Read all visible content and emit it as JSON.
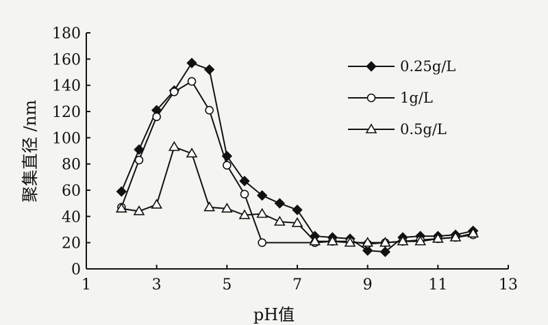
{
  "chart_data": {
    "type": "line",
    "xlabel": "pH值",
    "ylabel": "聚集直径 /nm",
    "xlim": [
      1,
      13
    ],
    "ylim": [
      0,
      180
    ],
    "xticks": [
      "1",
      "3",
      "5",
      "7",
      "9",
      "11",
      "13"
    ],
    "yticks": [
      "0",
      "20",
      "40",
      "60",
      "80",
      "100",
      "120",
      "140",
      "160",
      "180"
    ],
    "legend_position": "top-right",
    "series": [
      {
        "name": "0.25g/L",
        "marker": "filled-diamond",
        "x": [
          2,
          2.5,
          3,
          3.5,
          4,
          4.5,
          5,
          5.5,
          6,
          6.5,
          7,
          7.5,
          8,
          8.5,
          9,
          9.5,
          10,
          10.5,
          11,
          11.5,
          12
        ],
        "y": [
          59,
          91,
          121,
          136,
          157,
          152,
          86,
          67,
          56,
          50,
          45,
          25,
          24,
          23,
          14,
          13,
          24,
          25,
          25,
          26,
          29
        ]
      },
      {
        "name": "1g/L",
        "marker": "open-circle",
        "x": [
          2,
          2.5,
          3,
          3.5,
          4,
          4.5,
          5,
          5.5,
          6,
          7.5,
          8,
          8.5,
          9,
          9.5,
          10,
          10.5,
          11,
          11.5,
          12
        ],
        "y": [
          47,
          83,
          116,
          135,
          143,
          121,
          79,
          57,
          20,
          20,
          21,
          21,
          19,
          20,
          21,
          22,
          23,
          24,
          26
        ]
      },
      {
        "name": "0.5g/L",
        "marker": "open-triangle",
        "x": [
          2,
          2.5,
          3,
          3.5,
          4,
          4.5,
          5,
          5.5,
          6,
          6.5,
          7,
          7.5,
          8,
          8.5,
          9,
          9.5,
          10,
          10.5,
          11,
          11.5,
          12
        ],
        "y": [
          46,
          44,
          49,
          93,
          88,
          47,
          46,
          41,
          42,
          36,
          35,
          21,
          21,
          20,
          20,
          20,
          21,
          21,
          23,
          24,
          27
        ]
      }
    ]
  }
}
